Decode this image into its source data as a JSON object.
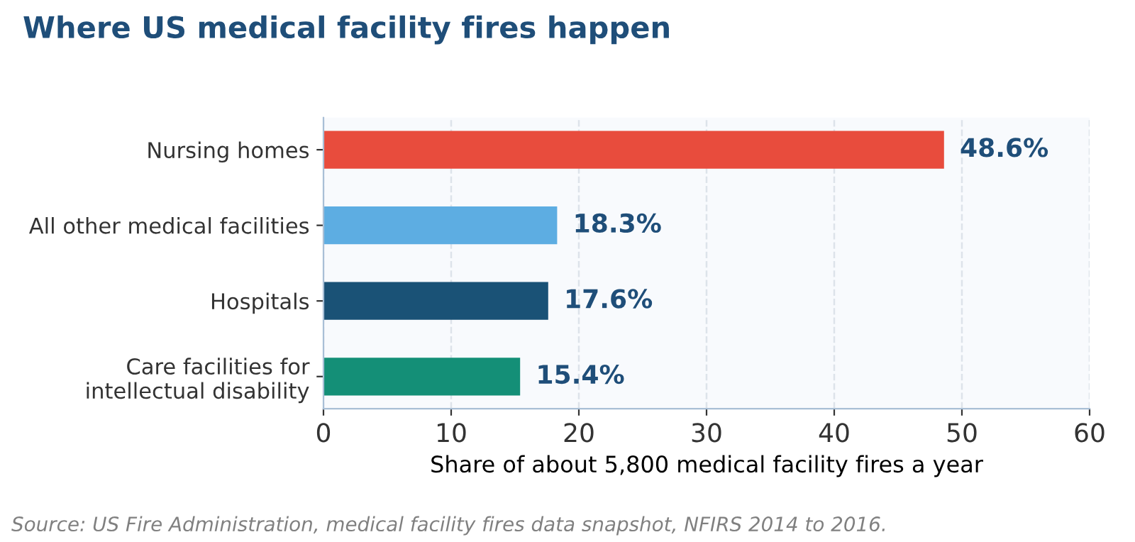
{
  "chart_data": {
    "type": "bar",
    "orientation": "horizontal",
    "title": "Where US medical facility fires happen",
    "xlabel": "Share of about 5,800 medical facility fires a year",
    "categories": [
      "Nursing homes",
      "All other medical facilities",
      "Hospitals",
      "Care facilities for\nintellectual disability"
    ],
    "values": [
      48.6,
      18.3,
      17.6,
      15.4
    ],
    "colors": [
      "#e84c3d",
      "#5dade2",
      "#1a5276",
      "#148f77"
    ],
    "value_labels": [
      "48.6%",
      "18.3%",
      "17.6%",
      "15.4%"
    ],
    "xlim": [
      0,
      60
    ],
    "xticks": [
      0,
      10,
      20,
      30,
      40,
      50,
      60
    ],
    "grid": "x",
    "annotations": [
      "Source: US Fire Administration, medical facility fires data snapshot, NFIRS 2014 to 2016."
    ]
  }
}
